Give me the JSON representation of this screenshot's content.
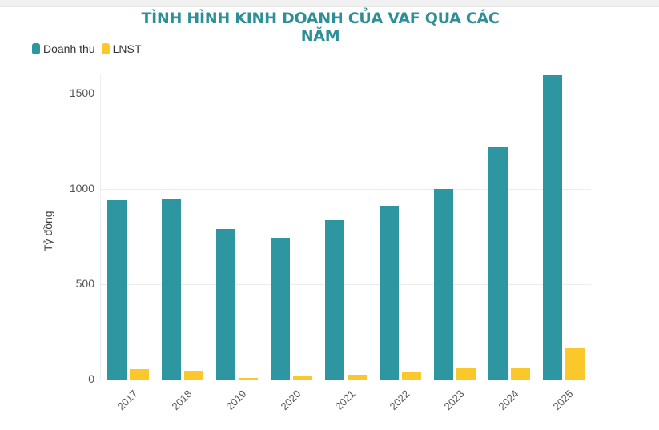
{
  "chart_data": {
    "type": "bar",
    "title": "TÌNH HÌNH KINH DOANH CỦA VAF QUA CÁC NĂM",
    "xlabel": "",
    "ylabel": "Tỷ đồng",
    "ylim": [
      0,
      1650
    ],
    "yticks": [
      0,
      500,
      1000,
      1500
    ],
    "grid": true,
    "legend_position": "top-left",
    "categories": [
      "2017",
      "2018",
      "2019",
      "2020",
      "2021",
      "2022",
      "2023",
      "2024",
      "2025"
    ],
    "series": [
      {
        "name": "Doanh thu",
        "color": "#2e96a0",
        "values": [
          941,
          945,
          790,
          744,
          836,
          912,
          1000,
          1218,
          1597
        ]
      },
      {
        "name": "LNST",
        "color": "#fbc82c",
        "values": [
          56,
          45,
          8,
          20,
          25,
          36,
          63,
          59,
          168
        ]
      }
    ]
  },
  "legend": [
    {
      "label": "Doanh thu",
      "color": "#2e96a0"
    },
    {
      "label": "LNST",
      "color": "#fbc82c"
    }
  ],
  "yticks": [
    "0",
    "500",
    "1000",
    "1500"
  ]
}
